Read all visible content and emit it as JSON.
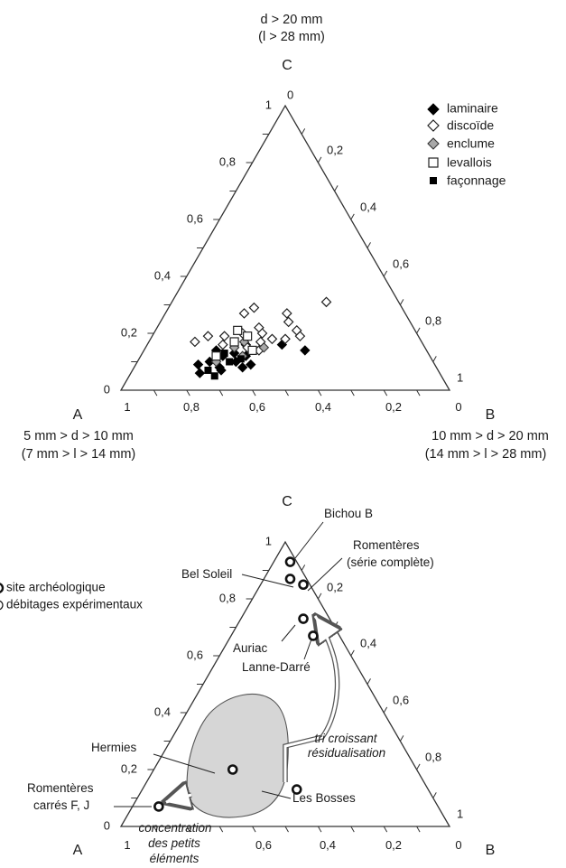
{
  "chart_data": [
    {
      "type": "scatter",
      "subtype": "ternary",
      "vertices": {
        "A": {
          "label": "A",
          "line1": "5 mm > d > 10 mm",
          "line2": "(7 mm > l > 14 mm)"
        },
        "B": {
          "label": "B",
          "line1": "10 mm > d > 20 mm",
          "line2": "(14 mm > l > 28 mm)"
        },
        "C": {
          "label": "C",
          "line1": "d > 20 mm",
          "line2": "(l > 28 mm)"
        }
      },
      "left_ticks": [
        "0",
        "0,2",
        "0,4",
        "0,6",
        "0,8",
        "1"
      ],
      "right_ticks": [
        "0",
        "0,2",
        "0,4",
        "0,6",
        "0,8",
        "1"
      ],
      "bottom_ticks": [
        "1",
        "0,8",
        "0,6",
        "0,4",
        "0,2",
        "0"
      ],
      "legend_position": "top-right",
      "legend": [
        {
          "key": "laminaire",
          "label": "laminaire",
          "marker": "diamond-filled",
          "color": "#000000"
        },
        {
          "key": "discoide",
          "label": "discoïde",
          "marker": "diamond-open",
          "color": "#ffffff"
        },
        {
          "key": "enclume",
          "label": "enclume",
          "marker": "diamond-grey",
          "color": "#a8a8a8"
        },
        {
          "key": "levallois",
          "label": "levallois",
          "marker": "square-open",
          "color": "#ffffff"
        },
        {
          "key": "faconnage",
          "label": "façonnage",
          "marker": "square-filled",
          "color": "#000000"
        }
      ],
      "series": [
        {
          "name": "laminaire",
          "points": [
            [
              0.22,
              0.1
            ],
            [
              0.26,
              0.08
            ],
            [
              0.3,
              0.1
            ],
            [
              0.28,
              0.13
            ],
            [
              0.33,
              0.08
            ],
            [
              0.21,
              0.06
            ],
            [
              0.25,
              0.12
            ],
            [
              0.32,
              0.12
            ],
            [
              0.27,
              0.07
            ],
            [
              0.35,
              0.09
            ],
            [
              0.41,
              0.16
            ],
            [
              0.49,
              0.14
            ],
            [
              0.22,
              0.14
            ],
            [
              0.3,
              0.16
            ],
            [
              0.19,
              0.09
            ]
          ]
        },
        {
          "name": "discoide",
          "points": [
            [
              0.24,
              0.27
            ],
            [
              0.26,
              0.29
            ],
            [
              0.37,
              0.27
            ],
            [
              0.47,
              0.31
            ],
            [
              0.31,
              0.22
            ],
            [
              0.33,
              0.2
            ],
            [
              0.43,
              0.21
            ],
            [
              0.45,
              0.19
            ],
            [
              0.41,
              0.18
            ],
            [
              0.37,
              0.18
            ],
            [
              0.34,
              0.17
            ],
            [
              0.27,
              0.2
            ],
            [
              0.22,
              0.19
            ],
            [
              0.23,
              0.16
            ],
            [
              0.39,
              0.24
            ],
            [
              0.14,
              0.17
            ],
            [
              0.17,
              0.19
            ],
            [
              0.31,
              0.15
            ],
            [
              0.35,
              0.14
            ]
          ]
        },
        {
          "name": "enclume",
          "points": [
            [
              0.27,
              0.15
            ],
            [
              0.31,
              0.12
            ],
            [
              0.24,
              0.1
            ],
            [
              0.29,
              0.17
            ],
            [
              0.36,
              0.15
            ]
          ]
        },
        {
          "name": "levallois",
          "points": [
            [
              0.25,
              0.21
            ],
            [
              0.26,
              0.17
            ],
            [
              0.33,
              0.14
            ],
            [
              0.29,
              0.19
            ],
            [
              0.23,
              0.12
            ]
          ]
        },
        {
          "name": "faconnage",
          "points": [
            [
              0.23,
              0.07
            ],
            [
              0.28,
              0.1
            ],
            [
              0.25,
              0.13
            ],
            [
              0.31,
              0.11
            ],
            [
              0.26,
              0.05
            ]
          ]
        }
      ]
    },
    {
      "type": "scatter",
      "subtype": "ternary",
      "vertices": {
        "A": "A",
        "B": "B",
        "C": "C"
      },
      "left_ticks": [
        "0",
        "0,2",
        "0,4",
        "0,6",
        "0,8",
        "1"
      ],
      "right_ticks": [
        "0,2",
        "0,4",
        "0,6",
        "0,8",
        "1"
      ],
      "bottom_ticks": [
        "1",
        "0,6",
        "0,4",
        "0,2",
        "0"
      ],
      "legend": [
        {
          "label": "site archéologique",
          "marker": "ring-bold"
        },
        {
          "label": "débitages expérimentaux",
          "marker": "ring-thin"
        }
      ],
      "sites": [
        {
          "name": "Bichou B",
          "b": 0.05,
          "c": 0.93
        },
        {
          "name": "Bel Soleil",
          "b": 0.08,
          "c": 0.87
        },
        {
          "name": "Romentères (série complète)",
          "b": 0.13,
          "c": 0.85
        },
        {
          "name": "Auriac",
          "b": 0.19,
          "c": 0.73
        },
        {
          "name": "Lanne-Darré",
          "b": 0.25,
          "c": 0.67
        },
        {
          "name": "Hermies",
          "b": 0.24,
          "c": 0.2
        },
        {
          "name": "Les Bosses",
          "b": 0.47,
          "c": 0.13
        },
        {
          "name": "Romentères carrés F, J",
          "b": 0.08,
          "c": 0.07
        }
      ],
      "annotations": [
        "tri croissant",
        "résidualisation",
        "concentration",
        "des petits",
        "éléments"
      ]
    }
  ]
}
